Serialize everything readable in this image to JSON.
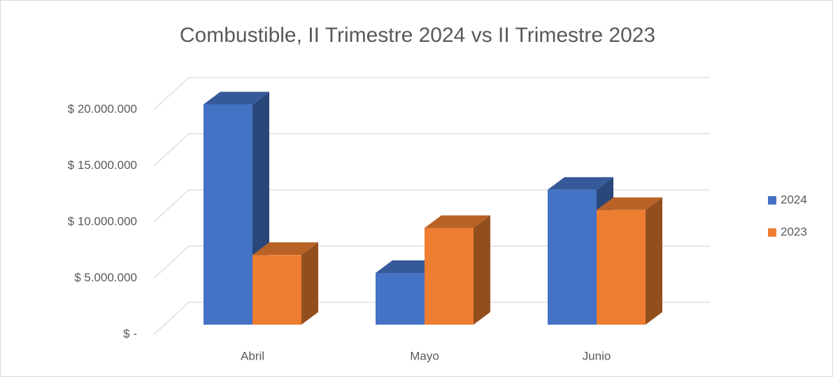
{
  "chart_data": {
    "type": "bar3d",
    "title": "Combustible, II Trimestre 2024 vs II Trimestre 2023",
    "categories": [
      "Abril",
      "Mayo",
      "Junio"
    ],
    "series": [
      {
        "name": "2024",
        "color": "#4472c4",
        "values": [
          19600000,
          4600000,
          12000000
        ]
      },
      {
        "name": "2023",
        "color": "#ed7d31",
        "values": [
          6200000,
          8600000,
          10200000
        ]
      }
    ],
    "ylim": [
      0,
      20000000
    ],
    "yticks": [
      {
        "value": 0,
        "label": "$ -"
      },
      {
        "value": 5000000,
        "label": "$ 5.000.000"
      },
      {
        "value": 10000000,
        "label": "$ 10.000.000"
      },
      {
        "value": 15000000,
        "label": "$ 15.000.000"
      },
      {
        "value": 20000000,
        "label": "$ 20.000.000"
      }
    ],
    "grid": true,
    "legend": "right"
  }
}
